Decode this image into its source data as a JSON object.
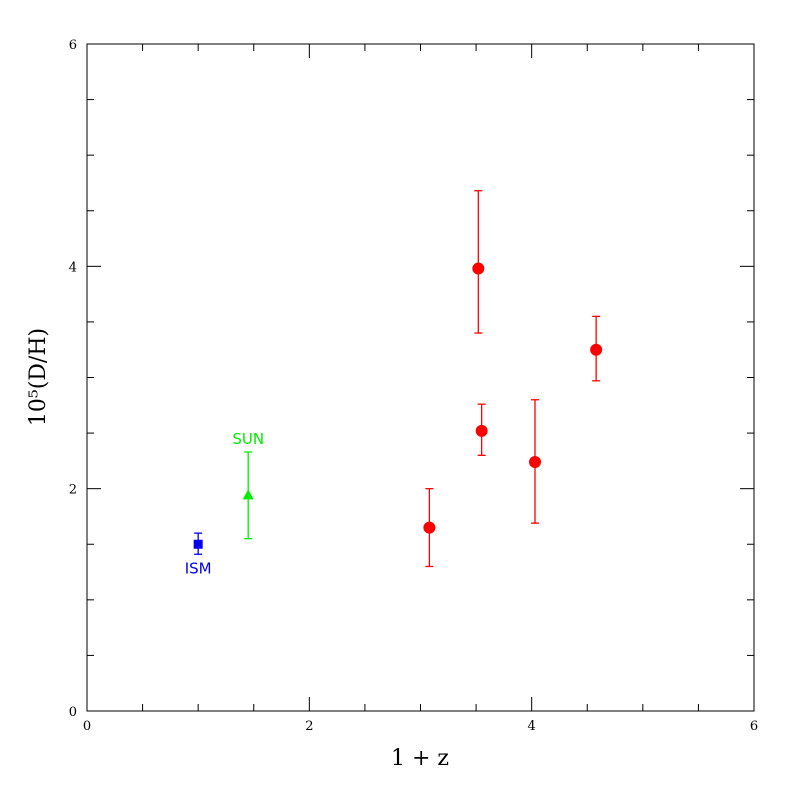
{
  "chart_data": {
    "type": "scatter",
    "title": "",
    "xlabel": "1 + z",
    "ylabel": "10⁵(D/H)",
    "xlim": [
      0,
      6
    ],
    "ylim": [
      0,
      6
    ],
    "x_ticks": [
      0,
      2,
      4,
      6
    ],
    "y_ticks": [
      0,
      2,
      4,
      6
    ],
    "x_minor_step": 0.5,
    "y_minor_step": 0.5,
    "grid": false,
    "series": [
      {
        "marker": "square",
        "color": "#0000ee",
        "annotation": "ISM",
        "points": [
          {
            "x": 1.0,
            "y": 1.5,
            "err_low": 1.41,
            "err_high": 1.6
          }
        ]
      },
      {
        "marker": "triangle",
        "color": "#00ee00",
        "annotation": "SUN",
        "points": [
          {
            "x": 1.45,
            "y": 1.94,
            "err_low": 1.55,
            "err_high": 2.33
          }
        ]
      },
      {
        "marker": "circle",
        "color": "#ff0000",
        "points": [
          {
            "x": 3.08,
            "y": 1.65,
            "err_low": 1.3,
            "err_high": 2.0
          },
          {
            "x": 3.52,
            "y": 3.98,
            "err_low": 3.4,
            "err_high": 4.68
          },
          {
            "x": 3.55,
            "y": 2.52,
            "err_low": 2.3,
            "err_high": 2.76
          },
          {
            "x": 4.03,
            "y": 2.24,
            "err_low": 1.69,
            "err_high": 2.8
          },
          {
            "x": 4.58,
            "y": 3.25,
            "err_low": 2.97,
            "err_high": 3.55
          }
        ]
      }
    ]
  }
}
